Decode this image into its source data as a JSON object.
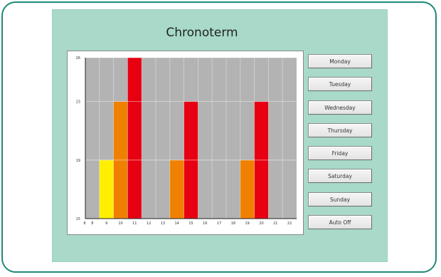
{
  "window": {
    "title": "Chronoterm"
  },
  "day_buttons": [
    {
      "label": "Monday"
    },
    {
      "label": "Tuesday"
    },
    {
      "label": "Wednesday"
    },
    {
      "label": "Thursday"
    },
    {
      "label": "Friday"
    },
    {
      "label": "Saturday"
    },
    {
      "label": "Sunday"
    },
    {
      "label": "Auto Off"
    }
  ],
  "chart_data": {
    "type": "bar",
    "categories": [
      "8",
      "9",
      "10",
      "11",
      "12",
      "13",
      "14",
      "15",
      "16",
      "17",
      "18",
      "19",
      "20",
      "21",
      "22"
    ],
    "values": [
      15,
      19,
      23,
      26,
      15,
      15,
      19,
      23,
      26,
      15,
      15,
      19,
      23,
      26,
      15
    ],
    "bar_colors": [
      "#b3b3b3",
      "#ffee00",
      "#f08000",
      "#e60012",
      "#b3b3b3",
      "#ffee00",
      "#f08000",
      "#e60012",
      "#b3b3b3",
      "#b3b3b3",
      "#ffee00",
      "#f08000",
      "#e60012",
      "#b3b3b3",
      "#ffee00"
    ],
    "y_ticks": [
      "15",
      "19",
      "23",
      "26"
    ],
    "x_first_label": "8",
    "ylim": [
      15,
      26
    ],
    "grid": true,
    "title": "",
    "xlabel": "",
    "ylabel": ""
  }
}
